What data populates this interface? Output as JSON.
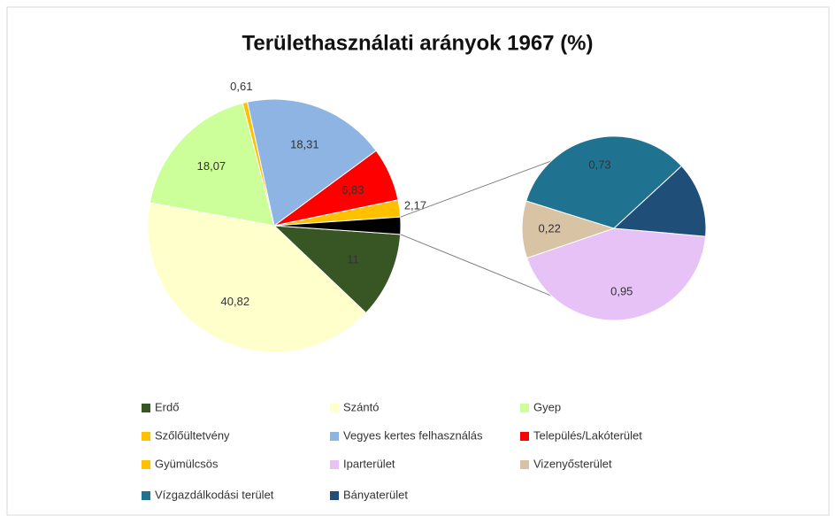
{
  "chart_data": {
    "type": "pie",
    "title": "Területhasználati arányok 1967 (%)",
    "categories": [
      "Erdő",
      "Szántó",
      "Gyep",
      "Szőlőültetvény",
      "Vegyes kertes felhasználás",
      "Település/Lakóterület",
      "Gyümülcsös",
      "Iparterület",
      "Vizenyősterület",
      "Vízgazdálkodási terület",
      "Bányaterület"
    ],
    "values": [
      11,
      40.82,
      18.07,
      0.61,
      18.31,
      6.83,
      2.17,
      0.95,
      0.22,
      0.73,
      0.29
    ],
    "value_labels": [
      "11",
      "40,82",
      "18,07",
      "0,61",
      "18,31",
      "6,83",
      "2,17",
      "0,95",
      "0,22",
      "0,73",
      null
    ],
    "colors": [
      "#375623",
      "#ffffcc",
      "#ccff99",
      "#ffc000",
      "#8db4e2",
      "#ff0000",
      "#ffc000",
      "#e6c2f7",
      "#d9c3a5",
      "#1f7391",
      "#1f4e79"
    ],
    "secondary_count": 4,
    "other_color": "#000000",
    "legend": "bottom"
  }
}
